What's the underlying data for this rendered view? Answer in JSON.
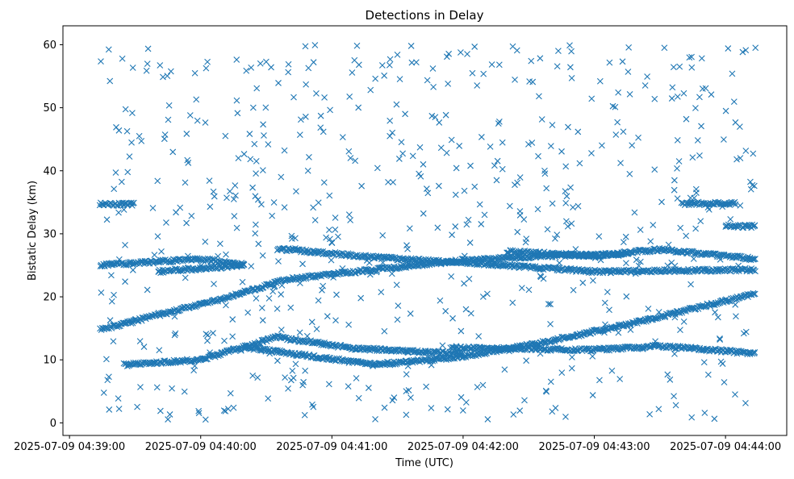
{
  "chart_data": {
    "type": "scatter",
    "title": "Detections in Delay",
    "xlabel": "Time (UTC)",
    "ylabel": "Bistatic Delay (km)",
    "x_ticks": [
      "2025-07-09 04:39:00",
      "2025-07-09 04:40:00",
      "2025-07-09 04:41:00",
      "2025-07-09 04:42:00",
      "2025-07-09 04:43:00",
      "2025-07-09 04:44:00"
    ],
    "y_ticks": [
      0,
      10,
      20,
      30,
      40,
      50,
      60
    ],
    "xlim": [
      "2025-07-09 04:38:57",
      "2025-07-09 04:44:28"
    ],
    "ylim": [
      -2,
      63
    ],
    "x_range": [
      "2025-07-09 04:39:14",
      "2025-07-09 04:44:14"
    ],
    "marker": "x",
    "marker_color": "#1f77b4",
    "grid": false,
    "series": [
      {
        "kind": "track",
        "points": [
          [
            "2025-07-09 04:39:14",
            14.8
          ],
          [
            "2025-07-09 04:40:05",
            19.2
          ],
          [
            "2025-07-09 04:40:40",
            22.8
          ],
          [
            "2025-07-09 04:41:30",
            24.7
          ],
          [
            "2025-07-09 04:42:00",
            25.8
          ],
          [
            "2025-07-09 04:42:40",
            26.5
          ],
          [
            "2025-07-09 04:43:15",
            26.8
          ]
        ]
      },
      {
        "kind": "track",
        "points": [
          [
            "2025-07-09 04:39:25",
            9.2
          ],
          [
            "2025-07-09 04:40:00",
            10.0
          ],
          [
            "2025-07-09 04:40:35",
            13.6
          ],
          [
            "2025-07-09 04:41:10",
            11.8
          ],
          [
            "2025-07-09 04:42:00",
            11.0
          ]
        ]
      },
      {
        "kind": "track",
        "points": [
          [
            "2025-07-09 04:40:20",
            12.0
          ],
          [
            "2025-07-09 04:41:20",
            9.2
          ],
          [
            "2025-07-09 04:42:00",
            10.5
          ],
          [
            "2025-07-09 04:42:40",
            13.0
          ],
          [
            "2025-07-09 04:43:20",
            16.0
          ],
          [
            "2025-07-09 04:44:14",
            20.5
          ]
        ]
      },
      {
        "kind": "track",
        "points": [
          [
            "2025-07-09 04:41:55",
            11.9
          ],
          [
            "2025-07-09 04:43:00",
            11.6
          ],
          [
            "2025-07-09 04:43:30",
            12.2
          ],
          [
            "2025-07-09 04:44:14",
            11.0
          ]
        ]
      },
      {
        "kind": "track",
        "points": [
          [
            "2025-07-09 04:40:35",
            27.6
          ],
          [
            "2025-07-09 04:41:30",
            26.0
          ],
          [
            "2025-07-09 04:42:10",
            25.2
          ],
          [
            "2025-07-09 04:43:00",
            24.0
          ],
          [
            "2025-07-09 04:44:14",
            24.3
          ]
        ]
      },
      {
        "kind": "track",
        "points": [
          [
            "2025-07-09 04:42:20",
            27.2
          ],
          [
            "2025-07-09 04:43:00",
            26.5
          ],
          [
            "2025-07-09 04:43:30",
            27.5
          ],
          [
            "2025-07-09 04:44:14",
            26.0
          ]
        ]
      },
      {
        "kind": "track",
        "points": [
          [
            "2025-07-09 04:39:14",
            25.0
          ],
          [
            "2025-07-09 04:40:00",
            26.0
          ],
          [
            "2025-07-09 04:40:20",
            25.0
          ],
          [
            "2025-07-09 04:39:40",
            24.0
          ]
        ]
      },
      {
        "kind": "track",
        "points": [
          [
            "2025-07-09 04:39:14",
            34.7
          ],
          [
            "2025-07-09 04:39:30",
            34.7
          ]
        ]
      },
      {
        "kind": "track",
        "points": [
          [
            "2025-07-09 04:43:40",
            34.8
          ],
          [
            "2025-07-09 04:44:05",
            34.8
          ]
        ]
      },
      {
        "kind": "track",
        "points": [
          [
            "2025-07-09 04:44:00",
            31.2
          ],
          [
            "2025-07-09 04:44:14",
            31.2
          ]
        ]
      },
      {
        "kind": "clutter",
        "count": 650,
        "x_range": [
          "2025-07-09 04:39:14",
          "2025-07-09 04:44:14"
        ],
        "y_range": [
          0.5,
          60
        ]
      }
    ]
  }
}
